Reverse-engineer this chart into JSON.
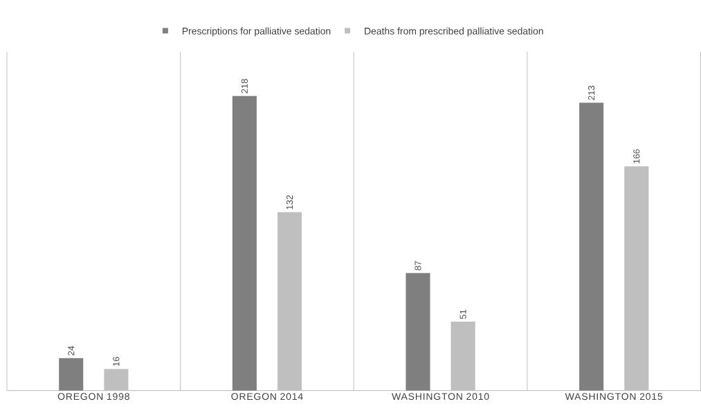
{
  "chart_data": {
    "type": "bar",
    "categories": [
      "OREGON 1998",
      "OREGON 2014",
      "WASHINGTON 2010",
      "WASHINGTON 2015"
    ],
    "series": [
      {
        "name": "Prescriptions for palliative sedation",
        "color": "#7f7f7f",
        "values": [
          24,
          218,
          87,
          213
        ]
      },
      {
        "name": "Deaths from prescribed palliative sedation",
        "color": "#bfbfbf",
        "values": [
          16,
          132,
          51,
          166
        ]
      }
    ],
    "data_labels": true,
    "grid": "x",
    "legend": "top"
  }
}
